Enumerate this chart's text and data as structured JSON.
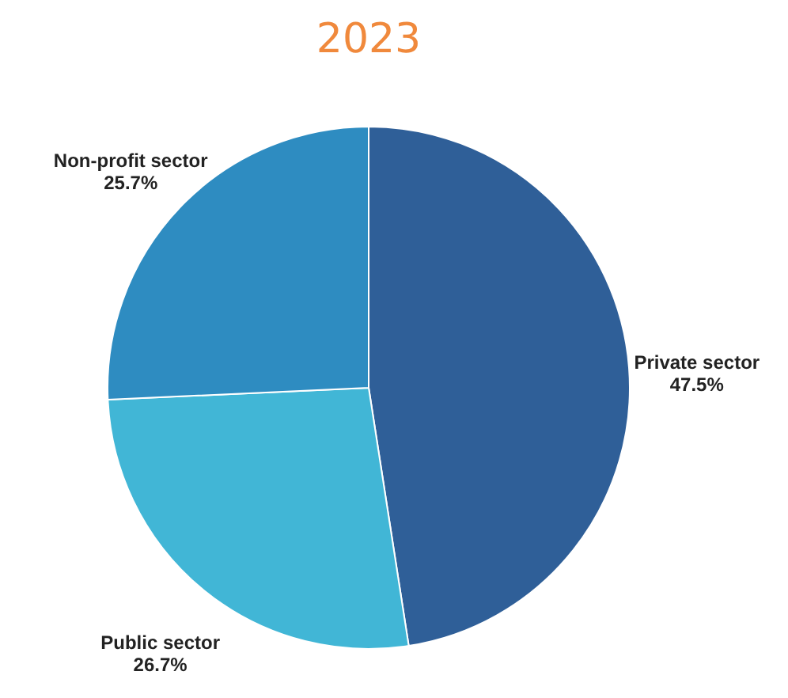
{
  "chart_data": {
    "type": "pie",
    "title": "2023",
    "categories": [
      "Private sector",
      "Public sector",
      "Non-profit sector"
    ],
    "values": [
      47.5,
      26.7,
      25.7
    ],
    "value_labels": [
      "47.5%",
      "26.7%",
      "25.7%"
    ],
    "colors": [
      "#2f5f98",
      "#41b6d6",
      "#2e8cc1"
    ],
    "legend": false
  }
}
